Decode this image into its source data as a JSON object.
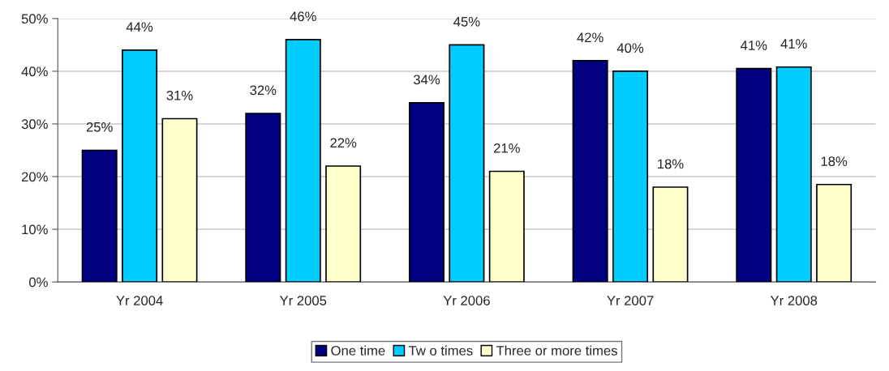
{
  "chart_data": {
    "type": "bar",
    "categories": [
      "Yr 2004",
      "Yr 2005",
      "Yr 2006",
      "Yr 2007",
      "Yr 2008"
    ],
    "series": [
      {
        "name": "One time",
        "color": "#000080",
        "values": [
          25,
          32,
          34,
          42,
          40.5
        ],
        "value_labels": [
          "25%",
          "32%",
          "34%",
          "42%",
          "41%"
        ]
      },
      {
        "name": "Tw o times",
        "color": "#00ccff",
        "values": [
          44,
          46,
          45,
          40,
          40.8
        ],
        "value_labels": [
          "44%",
          "46%",
          "45%",
          "40%",
          "41%"
        ]
      },
      {
        "name": "Three or more times",
        "color": "#ffffcc",
        "values": [
          31,
          22,
          21,
          18,
          18.5
        ],
        "value_labels": [
          "31%",
          "22%",
          "21%",
          "18%",
          "18%"
        ]
      }
    ],
    "ylim": [
      0,
      50
    ],
    "yticks": [
      {
        "value": 0,
        "label": "0%"
      },
      {
        "value": 10,
        "label": "10%"
      },
      {
        "value": 20,
        "label": "20%"
      },
      {
        "value": 30,
        "label": "30%"
      },
      {
        "value": 40,
        "label": "40%"
      },
      {
        "value": 50,
        "label": "50%"
      }
    ],
    "grid": "y",
    "legend": "bottom"
  }
}
